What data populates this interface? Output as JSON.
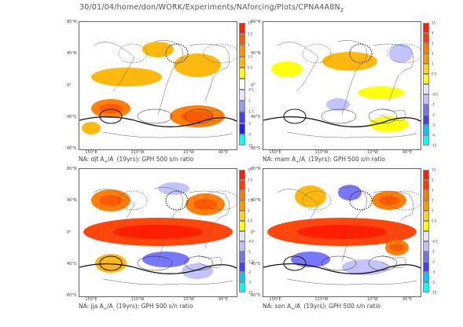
{
  "title_text": "30/01/04/home/don/WORK/Experiments/NAforcing/Plots/CPNA4A8N",
  "title_sub": "2",
  "latitude_labels": [
    "80°N",
    "40°N",
    "0°",
    "40°S",
    "80°S"
  ],
  "longitude_labels": [
    "150°E",
    "110°W",
    "10°W",
    "90°E"
  ],
  "colors": {
    "warm_scale": [
      "#ffff00",
      "#ffd21c",
      "#ffb400",
      "#ff9600",
      "#ff7800",
      "#ff5a00",
      "#ff3c00",
      "#ff1e00"
    ],
    "cool_scale": [
      "#e6e6ff",
      "#c0c0ff",
      "#9999ff",
      "#7070ff",
      "#4040ff",
      "#1e1eff",
      "#00c8ff",
      "#00ffff"
    ]
  },
  "panels": [
    {
      "id": "djf",
      "caption_prefix": "NA: djf A",
      "sub_a": "+",
      "caption_mid": "/A",
      "sub_b": "-",
      "caption_suffix": " (19yrs): GPH 500 s/n ratio",
      "colorbar_ticks": [
        "15",
        "1.5",
        "1",
        "1.5",
        "0.5",
        "",
        "-0.5",
        "-1",
        "-1.5",
        "-2",
        "-3",
        "-15"
      ]
    },
    {
      "id": "mam",
      "caption_prefix": "NA: mam A",
      "sub_a": "+",
      "caption_mid": "/A",
      "sub_b": "-",
      "caption_suffix": " (19yrs): GPH 500 s/n ratio",
      "colorbar_ticks": [
        "15",
        "4",
        "3",
        "2",
        "1",
        "0.5",
        "",
        "-0.5",
        "-1",
        "-2",
        "-3",
        "-4",
        "-15"
      ]
    },
    {
      "id": "jja",
      "caption_prefix": "NA: jja A",
      "sub_a": "+",
      "caption_mid": "/A",
      "sub_b": "-",
      "caption_suffix": " (19yrs): GPH 500 s/n ratio",
      "colorbar_ticks": [
        "15",
        "2.5",
        "2",
        "1.5",
        "1",
        "0.5",
        "",
        "-0.5",
        "-1",
        "-1.5",
        "-2",
        "-3",
        "-15"
      ]
    },
    {
      "id": "son",
      "caption_prefix": "NA: son A",
      "sub_a": "+",
      "caption_mid": "/A",
      "sub_b": "-",
      "caption_suffix": " (19yrs): GPH 500 s/n ratio",
      "colorbar_ticks": [
        "15",
        "5",
        "3",
        "2",
        "1",
        "0.5",
        "",
        "-0.5",
        "-1",
        "-2",
        "-3",
        "-5",
        "-15"
      ]
    }
  ]
}
